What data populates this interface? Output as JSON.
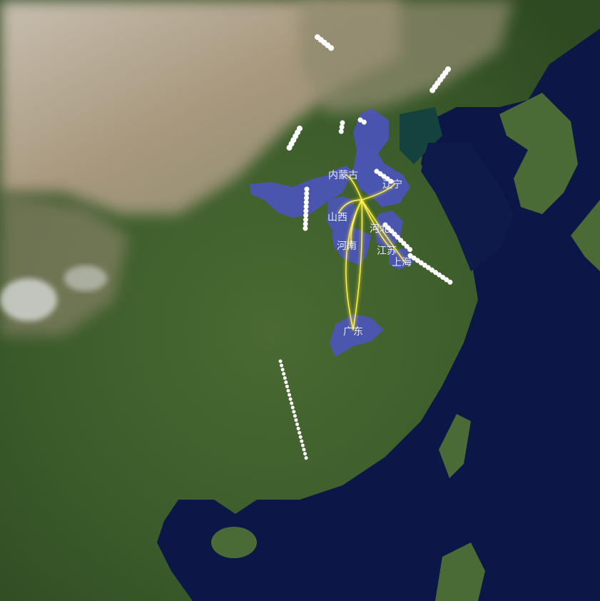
{
  "map": {
    "colors": {
      "sea": "#0c1747",
      "land": "#3d5a2a",
      "desert": "#a99d86",
      "region_fill": "#4e52e0",
      "flow_line": "#ffe600",
      "trail": "#ffffff"
    },
    "regions": [
      {
        "id": "neimenggu",
        "label": "内蒙古"
      },
      {
        "id": "liaoning",
        "label": "辽宁"
      },
      {
        "id": "shanxi",
        "label": "山西"
      },
      {
        "id": "hebei",
        "label": "河北"
      },
      {
        "id": "henan",
        "label": "河南"
      },
      {
        "id": "jiangsu",
        "label": "江苏"
      },
      {
        "id": "shanghai",
        "label": "上海"
      },
      {
        "id": "guangdong",
        "label": "广东"
      }
    ],
    "flows": [
      {
        "from": "hebei",
        "to": "neimenggu"
      },
      {
        "from": "hebei",
        "to": "liaoning"
      },
      {
        "from": "hebei",
        "to": "shanxi"
      },
      {
        "from": "hebei",
        "to": "henan"
      },
      {
        "from": "hebei",
        "to": "jiangsu"
      },
      {
        "from": "hebei",
        "to": "shanghai"
      },
      {
        "from": "hebei",
        "to": "guangdong"
      }
    ]
  }
}
